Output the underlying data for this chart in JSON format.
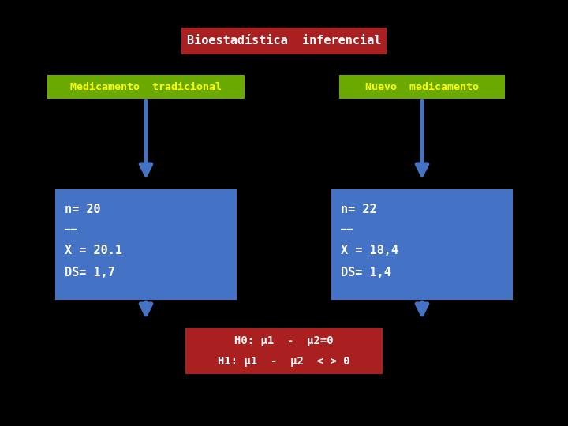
{
  "background_color": "#000000",
  "title_text": "Bioestadística  inferencial",
  "title_box_color": "#aa2020",
  "title_text_color": "#ffffff",
  "label_left": "Medicamento  tradicional",
  "label_right": "Nuevo  medicamento",
  "label_box_color": "#6aaa00",
  "label_text_color": "#ffff00",
  "data_box_color": "#4472c4",
  "data_text_color": "#ffffff",
  "left_n": "n= 20",
  "left_xbar": "̅",
  "left_x": "X = 20.1",
  "left_ds": "DS= 1,7",
  "right_n": "n= 22",
  "right_xbar": "̅",
  "right_x": "X = 18,4",
  "right_ds": "DS= 1,4",
  "hypothesis_box_color": "#aa2020",
  "hypothesis_text_color": "#ffffff",
  "hyp_line1": "H0: μ1  -  μ2=0",
  "hyp_line2": "H1: μ1  -  μ2  < > 0",
  "arrow_color": "#4472c4",
  "fig_w": 7.2,
  "fig_h": 5.4,
  "dpi": 100
}
